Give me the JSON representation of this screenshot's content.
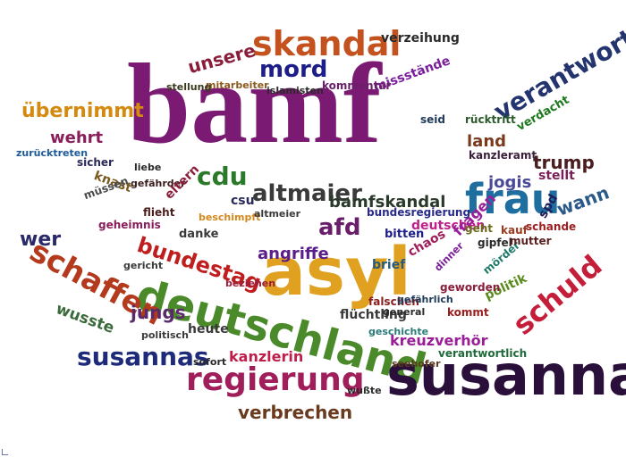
{
  "words": [
    {
      "t": "bamf",
      "c": "#7a1a73"
    },
    {
      "t": "asyl",
      "c": "#e0a020"
    },
    {
      "t": "deutschland",
      "c": "#4a8a2a"
    },
    {
      "t": "susanna",
      "c": "#2a0f3a"
    },
    {
      "t": "skandal",
      "c": "#c4521e"
    },
    {
      "t": "frau",
      "c": "#1e6ea0"
    },
    {
      "t": "verantwortung",
      "c": "#24346e"
    },
    {
      "t": "regierung",
      "c": "#a01e5a"
    },
    {
      "t": "schaffen",
      "c": "#b43a1e"
    },
    {
      "t": "schuld",
      "c": "#c41e3a"
    },
    {
      "t": "mord",
      "c": "#1e1e8a"
    },
    {
      "t": "altmaier",
      "c": "#3a3a3a"
    },
    {
      "t": "susannas",
      "c": "#1e2a7a"
    },
    {
      "t": "übernimmt",
      "c": "#d48a10"
    },
    {
      "t": "cdu",
      "c": "#2a7a2a"
    },
    {
      "t": "bundestag",
      "c": "#c01e1e"
    },
    {
      "t": "afd",
      "c": "#6a1e6a"
    },
    {
      "t": "verbrechen",
      "c": "#6a3a1e"
    },
    {
      "t": "unsere",
      "c": "#8a1e3a"
    },
    {
      "t": "trump",
      "c": "#4a1e1e"
    },
    {
      "t": "wehrt",
      "c": "#8a1e5a"
    },
    {
      "t": "jungs",
      "c": "#5a2a6a"
    },
    {
      "t": "wer",
      "c": "#2a2a6a"
    },
    {
      "t": "bamfskandal",
      "c": "#2a3a2a"
    },
    {
      "t": "angriffe",
      "c": "#5a1e8a"
    },
    {
      "t": "land",
      "c": "#7a3a1e"
    },
    {
      "t": "jogis",
      "c": "#4a4a9a"
    },
    {
      "t": "wann",
      "c": "#2a5a8a"
    },
    {
      "t": "kreuzverhör",
      "c": "#9a1e9a"
    },
    {
      "t": "kanzlerin",
      "c": "#c01e4a"
    },
    {
      "t": "wusste",
      "c": "#3a6a3a"
    },
    {
      "t": "flüchtling",
      "c": "#3a3a3a"
    },
    {
      "t": "verzeihung",
      "c": "#2a2a2a"
    },
    {
      "t": "missstände",
      "c": "#7a1e9a"
    },
    {
      "t": "rücktritt",
      "c": "#2a5a2a"
    },
    {
      "t": "deutschen",
      "c": "#c01e8a"
    },
    {
      "t": "fragen",
      "c": "#9a1e9a"
    },
    {
      "t": "chaos",
      "c": "#a01e5a"
    },
    {
      "t": "politik",
      "c": "#5a8a1e"
    },
    {
      "t": "heute",
      "c": "#3a3a3a"
    },
    {
      "t": "bundesregierung",
      "c": "#2a2a8a"
    },
    {
      "t": "brief",
      "c": "#2a5a7a"
    },
    {
      "t": "mörder",
      "c": "#1e7a6a"
    },
    {
      "t": "stellt",
      "c": "#7a1e5a"
    },
    {
      "t": "spd",
      "c": "#1e1e5a"
    },
    {
      "t": "verdacht",
      "c": "#1e7a1e"
    },
    {
      "t": "kanzleramt",
      "c": "#3a1e3a"
    },
    {
      "t": "flieht",
      "c": "#4a1e1e"
    },
    {
      "t": "seid",
      "c": "#1e3a5a"
    },
    {
      "t": "geht",
      "c": "#6a6a1e"
    },
    {
      "t": "kommentar",
      "c": "#6a1e6a"
    },
    {
      "t": "islamisten",
      "c": "#2a2a2a"
    },
    {
      "t": "mitarbeiter",
      "c": "#8a5a1e"
    },
    {
      "t": "stellung",
      "c": "#3a3a1e"
    },
    {
      "t": "zurücktreten",
      "c": "#1e5a9a"
    },
    {
      "t": "knast",
      "c": "#7a5a1e"
    },
    {
      "t": "müssen",
      "c": "#4a4a4a"
    },
    {
      "t": "sicher",
      "c": "#2a2a5a"
    },
    {
      "t": "liebe",
      "c": "#2a2a2a"
    },
    {
      "t": "gefährder",
      "c": "#3a1e1e"
    },
    {
      "t": "eltern",
      "c": "#8a1e3a"
    },
    {
      "t": "danke",
      "c": "#3a3a3a"
    },
    {
      "t": "geheimnis",
      "c": "#8a1e5a"
    },
    {
      "t": "gericht",
      "c": "#3a3a3a"
    },
    {
      "t": "politisch",
      "c": "#3a3a3a"
    },
    {
      "t": "sofort",
      "c": "#2a2a2a"
    },
    {
      "t": "beschimpft",
      "c": "#d4881e"
    },
    {
      "t": "csu",
      "c": "#2a2a5a"
    },
    {
      "t": "altmeier",
      "c": "#3a3a3a"
    },
    {
      "t": "bitten",
      "c": "#1e1e8a"
    },
    {
      "t": "gipfel",
      "c": "#2a2a2a"
    },
    {
      "t": "kauf",
      "c": "#9a3a1e"
    },
    {
      "t": "schande",
      "c": "#9a1e1e"
    },
    {
      "t": "mutter",
      "c": "#5a1e1e"
    },
    {
      "t": "geworden",
      "c": "#8a1e3a"
    },
    {
      "t": "falschen",
      "c": "#8a1e1e"
    },
    {
      "t": "general",
      "c": "#2a2a2a"
    },
    {
      "t": "gefährlich",
      "c": "#1e3a5a"
    },
    {
      "t": "geschichte",
      "c": "#2a7a7a"
    },
    {
      "t": "kommt",
      "c": "#9a1e1e"
    },
    {
      "t": "verantwortlich",
      "c": "#1e6a3a"
    },
    {
      "t": "seehofer",
      "c": "#5a3a1e"
    },
    {
      "t": "wußte",
      "c": "#2a2a2a"
    },
    {
      "t": "beziehen",
      "c": "#9a1e3a"
    },
    {
      "t": "dinner",
      "c": "#7a1e9a"
    }
  ]
}
